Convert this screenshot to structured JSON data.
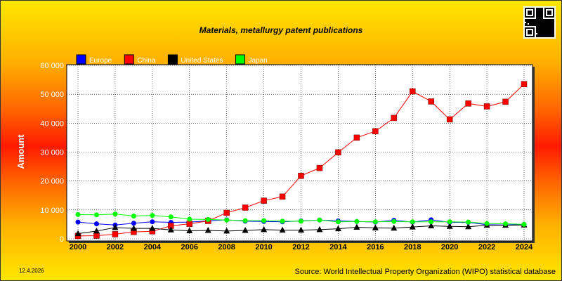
{
  "title": "Materials, metallurgy patent publications",
  "date": "12.4.2026",
  "source": "Source: World Intellectual Property Organization (WIPO) statistical database",
  "qr_icon": "qr-code-icon",
  "chart_data": {
    "type": "line",
    "title": "Materials, metallurgy patent publications",
    "xlabel": "",
    "ylabel": "Amount",
    "x": [
      2000,
      2001,
      2002,
      2003,
      2004,
      2005,
      2006,
      2007,
      2008,
      2009,
      2010,
      2011,
      2012,
      2013,
      2014,
      2015,
      2016,
      2017,
      2018,
      2019,
      2020,
      2021,
      2022,
      2023,
      2024
    ],
    "x_ticks": [
      "2000",
      "2002",
      "2004",
      "2006",
      "2008",
      "2010",
      "2012",
      "2014",
      "2016",
      "2018",
      "2020",
      "2022",
      "2024"
    ],
    "y_ticks": [
      "0",
      "10 000",
      "20 000",
      "30 000",
      "40 000",
      "50 000",
      "60 000"
    ],
    "ylim": [
      0,
      60000
    ],
    "grid": true,
    "legend_position": "top-left",
    "series": [
      {
        "name": "Europe",
        "color": "#0000ff",
        "marker": "circle",
        "values": [
          5800,
          5200,
          4800,
          5400,
          5900,
          5700,
          5800,
          6200,
          6600,
          6100,
          6000,
          5900,
          6200,
          6500,
          6200,
          6000,
          5800,
          6400,
          5800,
          6600,
          5700,
          5700,
          4900,
          4800,
          5000
        ]
      },
      {
        "name": "China",
        "color": "#ff0000",
        "marker": "square",
        "values": [
          1000,
          1100,
          1600,
          2400,
          2600,
          4500,
          5200,
          6200,
          9000,
          10800,
          13200,
          14600,
          21800,
          24500,
          29900,
          35000,
          37200,
          41800,
          51000,
          47500,
          41300,
          46800,
          45800,
          47400,
          53500
        ]
      },
      {
        "name": "United States",
        "color": "#000000",
        "marker": "triangle",
        "values": [
          1800,
          2700,
          3900,
          3600,
          3600,
          3100,
          2800,
          2900,
          2700,
          2900,
          3200,
          3000,
          3000,
          3200,
          3500,
          4000,
          3800,
          3700,
          4100,
          4500,
          4300,
          4200,
          4700,
          4700,
          4800
        ]
      },
      {
        "name": "Japan",
        "color": "#00ff00",
        "marker": "circle",
        "values": [
          8400,
          8300,
          8600,
          7900,
          8100,
          7600,
          6800,
          6700,
          6500,
          6300,
          6300,
          6100,
          6100,
          6500,
          5900,
          6000,
          5900,
          6000,
          5900,
          5900,
          5900,
          5800,
          5300,
          5200,
          5000
        ]
      }
    ]
  }
}
